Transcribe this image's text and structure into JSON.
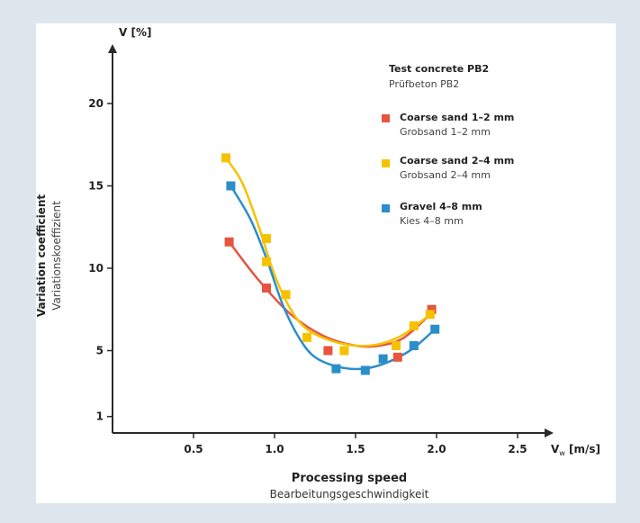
{
  "chart_data": {
    "type": "scatter",
    "y_label_top": "V [%]",
    "y_title": "Variation coefficient",
    "y_title_sub": "Variationskoeffizient",
    "x_title": "Processing speed",
    "x_title_sub": "Bearbeitungsgeschwindigkeit",
    "x_unit_label": "V",
    "x_unit_sub": "w",
    "x_unit_rest": " [m/s]",
    "xlim": [
      0,
      2.8
    ],
    "ylim": [
      0,
      23.5
    ],
    "x_ticks": [
      {
        "v": 0.5,
        "label": "0.5"
      },
      {
        "v": 1.0,
        "label": "1.0"
      },
      {
        "v": 1.5,
        "label": "1.5"
      },
      {
        "v": 2.0,
        "label": "2.0"
      },
      {
        "v": 2.5,
        "label": "2.5"
      }
    ],
    "y_ticks": [
      {
        "v": 1,
        "label": "1"
      },
      {
        "v": 5,
        "label": "5"
      },
      {
        "v": 10,
        "label": "10"
      },
      {
        "v": 15,
        "label": "15"
      },
      {
        "v": 20,
        "label": "20"
      }
    ],
    "grid": false,
    "legend_title": "Test concrete PB2",
    "legend_title_sub": "Prüfbeton PB2",
    "legend_position": "top-right",
    "series": [
      {
        "name": "Coarse sand 1–2 mm",
        "name_sub": "Grobsand 1–2 mm",
        "color": "#e8553e",
        "points": [
          [
            0.72,
            11.6
          ],
          [
            0.95,
            8.8
          ],
          [
            1.33,
            5.0
          ],
          [
            1.76,
            4.6
          ],
          [
            1.97,
            7.5
          ]
        ],
        "fit": [
          [
            0.72,
            11.6
          ],
          [
            0.9,
            9.3
          ],
          [
            1.1,
            7.2
          ],
          [
            1.3,
            5.9
          ],
          [
            1.5,
            5.3
          ],
          [
            1.65,
            5.3
          ],
          [
            1.8,
            5.8
          ],
          [
            1.97,
            7.3
          ]
        ]
      },
      {
        "name": "Coarse sand 2–4 mm",
        "name_sub": "Grobsand 2–4 mm",
        "color": "#f6c200",
        "points": [
          [
            0.7,
            16.7
          ],
          [
            0.95,
            11.8
          ],
          [
            0.95,
            10.4
          ],
          [
            1.07,
            8.4
          ],
          [
            1.2,
            5.8
          ],
          [
            1.43,
            5.0
          ],
          [
            1.75,
            5.3
          ],
          [
            1.86,
            6.5
          ],
          [
            1.96,
            7.2
          ]
        ],
        "fit": [
          [
            0.7,
            16.7
          ],
          [
            0.8,
            15.2
          ],
          [
            0.9,
            12.6
          ],
          [
            1.0,
            9.6
          ],
          [
            1.1,
            7.5
          ],
          [
            1.2,
            6.3
          ],
          [
            1.35,
            5.6
          ],
          [
            1.5,
            5.3
          ],
          [
            1.65,
            5.4
          ],
          [
            1.8,
            6.0
          ],
          [
            1.96,
            7.2
          ]
        ]
      },
      {
        "name": "Gravel 4–8 mm",
        "name_sub": "Kies 4–8 mm",
        "color": "#2b8ec9",
        "points": [
          [
            0.73,
            15.0
          ],
          [
            1.38,
            3.9
          ],
          [
            1.56,
            3.8
          ],
          [
            1.67,
            4.5
          ],
          [
            1.86,
            5.3
          ],
          [
            1.99,
            6.3
          ]
        ],
        "fit": [
          [
            0.73,
            15.0
          ],
          [
            0.85,
            13.0
          ],
          [
            0.95,
            10.6
          ],
          [
            1.05,
            7.8
          ],
          [
            1.15,
            5.8
          ],
          [
            1.25,
            4.6
          ],
          [
            1.4,
            4.0
          ],
          [
            1.55,
            3.9
          ],
          [
            1.7,
            4.3
          ],
          [
            1.85,
            5.1
          ],
          [
            1.99,
            6.3
          ]
        ]
      }
    ]
  }
}
